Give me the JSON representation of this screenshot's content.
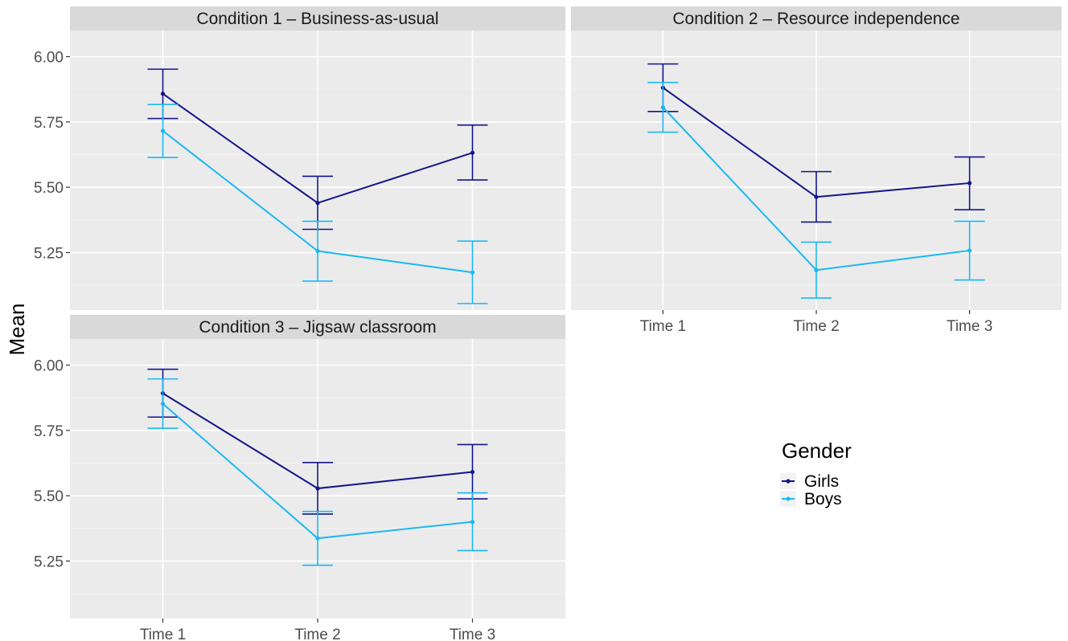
{
  "chart_data": {
    "type": "line",
    "ylabel": "Mean",
    "x": [
      "Time 1",
      "Time 2",
      "Time 3"
    ],
    "y_ticks": [
      "6.00",
      "5.75",
      "5.50",
      "5.25"
    ],
    "ylim": [
      5.03,
      6.1
    ],
    "legend": {
      "title": "Gender",
      "placement": "right",
      "entries": [
        {
          "label": "Girls",
          "color": "#14148a"
        },
        {
          "label": "Boys",
          "color": "#1ab8f2"
        }
      ]
    },
    "panels": [
      {
        "title": "Condition 1 – Business-as-usual",
        "series": [
          {
            "name": "Girls",
            "values": [
              5.858,
              5.44,
              5.632
            ],
            "lower": [
              5.763,
              5.339,
              5.528
            ],
            "upper": [
              5.952,
              5.542,
              5.738
            ]
          },
          {
            "name": "Boys",
            "values": [
              5.716,
              5.256,
              5.174
            ],
            "lower": [
              5.614,
              5.141,
              5.055
            ],
            "upper": [
              5.817,
              5.37,
              5.294
            ]
          }
        ]
      },
      {
        "title": "Condition 2 – Resource independence",
        "series": [
          {
            "name": "Girls",
            "values": [
              5.881,
              5.463,
              5.516
            ],
            "lower": [
              5.79,
              5.367,
              5.414
            ],
            "upper": [
              5.972,
              5.56,
              5.616
            ]
          },
          {
            "name": "Boys",
            "values": [
              5.806,
              5.183,
              5.258
            ],
            "lower": [
              5.711,
              5.076,
              5.145
            ],
            "upper": [
              5.901,
              5.29,
              5.37
            ]
          }
        ]
      },
      {
        "title": "Condition 3 – Jigsaw classroom",
        "series": [
          {
            "name": "Girls",
            "values": [
              5.892,
              5.528,
              5.591
            ],
            "lower": [
              5.801,
              5.43,
              5.488
            ],
            "upper": [
              5.984,
              5.627,
              5.696
            ]
          },
          {
            "name": "Boys",
            "values": [
              5.852,
              5.337,
              5.4
            ],
            "lower": [
              5.758,
              5.234,
              5.29
            ],
            "upper": [
              5.947,
              5.44,
              5.511
            ]
          }
        ]
      }
    ]
  }
}
